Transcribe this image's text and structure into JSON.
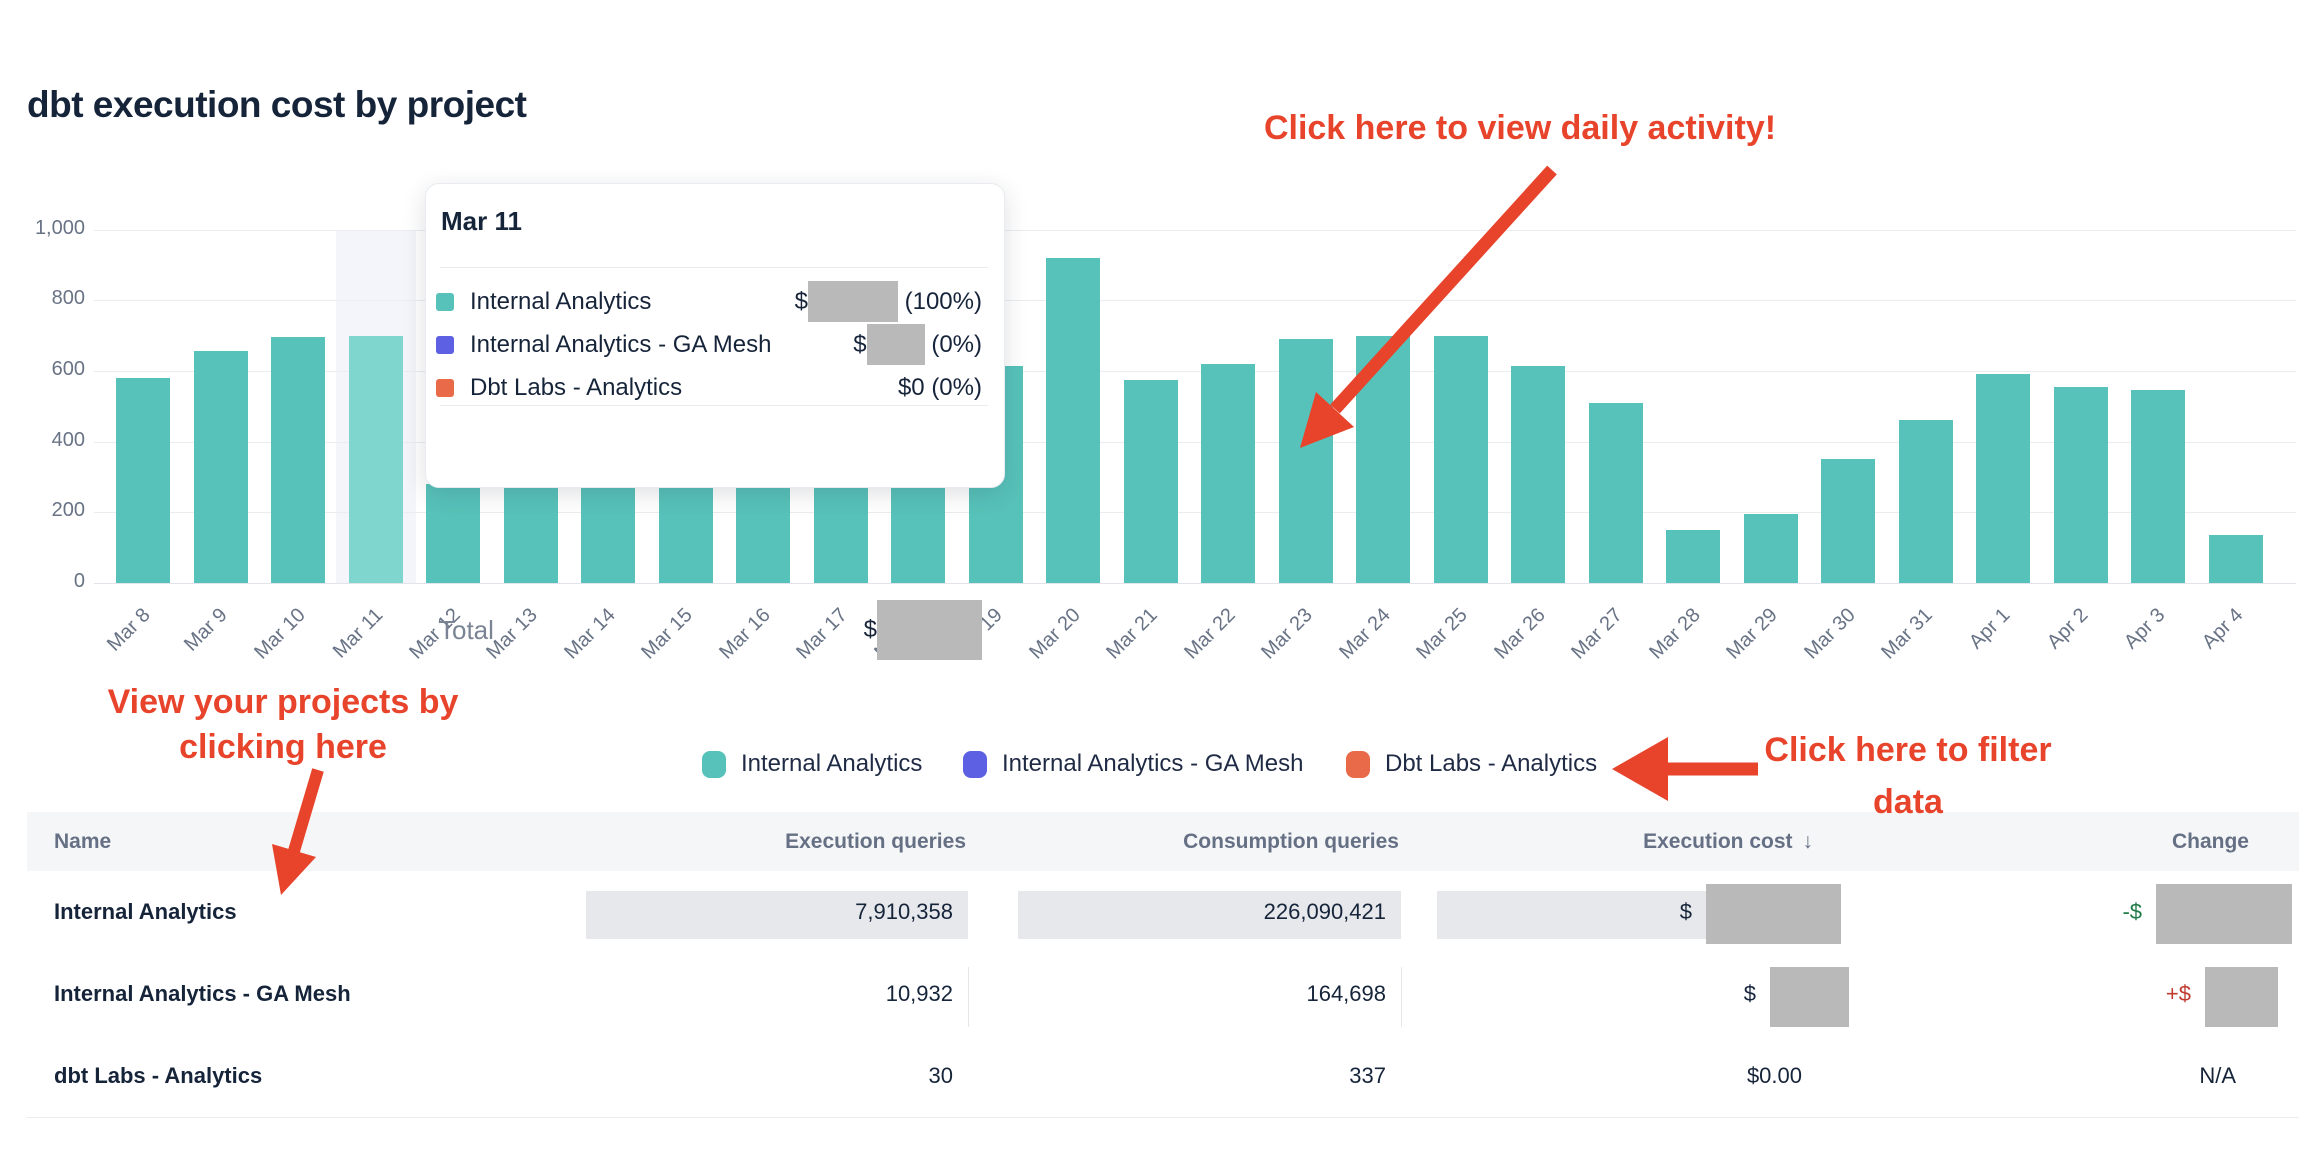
{
  "title": "dbt execution cost by project",
  "colors": {
    "teal": "#57C2B9",
    "teal_highlight": "#7ED6CF",
    "indigo": "#5D60E3",
    "orange": "#E96A48",
    "annotation_red": "#E8432B",
    "text_dark": "#16243A",
    "text_gray": "#697386",
    "redaction_gray": "#B9B9B9",
    "row_highlight_gray": "#E6E8EC",
    "change_negative_green": "#1E7A46",
    "change_positive_red": "#C13A30"
  },
  "chart_data": {
    "type": "bar",
    "stacked": true,
    "title": "dbt execution cost by project",
    "categories": [
      "Mar 8",
      "Mar 9",
      "Mar 10",
      "Mar 11",
      "Mar 12",
      "Mar 13",
      "Mar 14",
      "Mar 15",
      "Mar 16",
      "Mar 17",
      "Mar 18",
      "Mar 19",
      "Mar 20",
      "Mar 21",
      "Mar 22",
      "Mar 23",
      "Mar 24",
      "Mar 25",
      "Mar 26",
      "Mar 27",
      "Mar 28",
      "Mar 29",
      "Mar 30",
      "Mar 31",
      "Apr 1",
      "Apr 2",
      "Apr 3",
      "Apr 4"
    ],
    "series": [
      {
        "name": "Internal Analytics",
        "color": "#57C2B9",
        "values": [
          580,
          655,
          695,
          700,
          280,
          280,
          280,
          280,
          280,
          280,
          280,
          615,
          920,
          575,
          620,
          690,
          700,
          700,
          615,
          510,
          150,
          195,
          350,
          460,
          590,
          555,
          545,
          135
        ]
      },
      {
        "name": "Internal Analytics - GA Mesh",
        "color": "#5D60E3",
        "values": [
          0,
          0,
          0,
          0,
          0,
          0,
          0,
          0,
          0,
          0,
          0,
          0,
          0,
          0,
          0,
          0,
          0,
          0,
          0,
          0,
          0,
          0,
          0,
          0,
          0,
          0,
          0,
          0
        ]
      },
      {
        "name": "Dbt Labs - Analytics",
        "color": "#E96A48",
        "values": [
          0,
          0,
          0,
          0,
          0,
          0,
          0,
          0,
          0,
          0,
          0,
          0,
          0,
          0,
          0,
          0,
          0,
          0,
          0,
          0,
          0,
          0,
          0,
          0,
          0,
          0,
          0,
          0
        ]
      }
    ],
    "note": "Bars for Mar 12 through Mar 18 are partially hidden behind the hover tooltip; only ~280 of each bar is visible.",
    "highlighted_category": "Mar 11",
    "ylim": [
      0,
      1000
    ],
    "yticks": [
      0,
      200,
      400,
      600,
      800,
      1000
    ],
    "ytick_labels": [
      "0",
      "200",
      "400",
      "600",
      "800",
      "1,000"
    ],
    "grid": true,
    "legend_position": "bottom"
  },
  "tooltip": {
    "title": "Mar 11",
    "rows": [
      {
        "name": "Internal Analytics",
        "swatch": "#57C2B9",
        "prefix": "$",
        "redacted": true,
        "redact_w": 90,
        "suffix": " (100%)"
      },
      {
        "name": "Internal Analytics - GA Mesh",
        "swatch": "#5D60E3",
        "prefix": "$",
        "redacted": true,
        "redact_w": 58,
        "suffix": " (0%)"
      },
      {
        "name": "Dbt Labs - Analytics",
        "swatch": "#E96A48",
        "prefix": "$0 (0%)",
        "redacted": false,
        "redact_w": 0,
        "suffix": ""
      }
    ],
    "total_label": "Total",
    "total_prefix": "$",
    "total_redacted": true
  },
  "legend": {
    "items": [
      {
        "label": "Internal Analytics",
        "color": "#57C2B9"
      },
      {
        "label": "Internal Analytics - GA Mesh",
        "color": "#5D60E3"
      },
      {
        "label": "Dbt Labs - Analytics",
        "color": "#E96A48"
      }
    ]
  },
  "annotations": {
    "daily_activity": "Click here to view daily activity!",
    "projects_line1": "View your projects by",
    "projects_line2": "clicking here",
    "filter_line1": "Click here to filter",
    "filter_line2": "data"
  },
  "table": {
    "headers": {
      "name": "Name",
      "execution_queries": "Execution queries",
      "consumption_queries": "Consumption queries",
      "execution_cost": "Execution cost",
      "sort_arrow": "↓",
      "change": "Change"
    },
    "rows": [
      {
        "name": "Internal Analytics",
        "execution_queries": "7,910,358",
        "consumption_queries": "226,090,421",
        "cost_prefix": "$",
        "cost_redacted": true,
        "change_prefix": "-$",
        "change_redacted": true,
        "change_sign": "negative",
        "highlighted": true
      },
      {
        "name": "Internal Analytics - GA Mesh",
        "execution_queries": "10,932",
        "consumption_queries": "164,698",
        "cost_prefix": "$",
        "cost_redacted": true,
        "change_prefix": "+$",
        "change_redacted": true,
        "change_sign": "positive",
        "highlighted": false
      },
      {
        "name": "dbt Labs - Analytics",
        "execution_queries": "30",
        "consumption_queries": "337",
        "cost_prefix": "$0.00",
        "cost_redacted": false,
        "change_prefix": "N/A",
        "change_redacted": false,
        "change_sign": "none",
        "highlighted": false
      }
    ]
  }
}
